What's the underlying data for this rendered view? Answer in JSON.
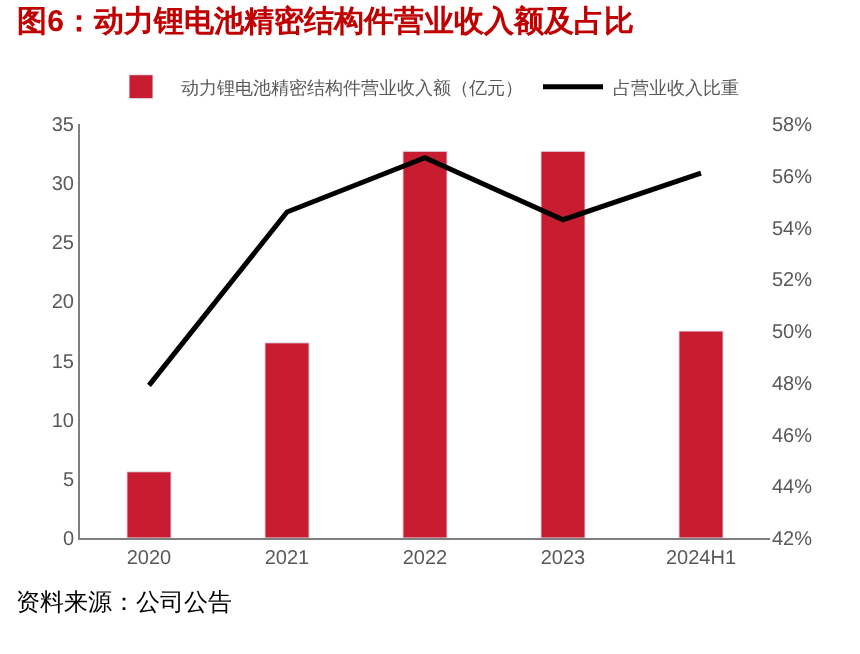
{
  "chart_data": {
    "type": "bar",
    "title": "图6：动力锂电池精密结构件营业收入额及占比",
    "categories": [
      "2020",
      "2021",
      "2022",
      "2023",
      "2024H1"
    ],
    "series": [
      {
        "name": "动力锂电池精密结构件营业收入额（亿元）",
        "color": "#c81d31",
        "values": [
          5.6,
          16.5,
          32.7,
          32.7,
          17.5
        ]
      },
      {
        "name": "占营业收入比重",
        "type": "line",
        "axis": "y2",
        "color": "#000000",
        "values": [
          47.9,
          54.6,
          56.7,
          54.3,
          56.1
        ]
      }
    ],
    "ylim": [
      0,
      35
    ],
    "yticks": [
      0,
      5,
      10,
      15,
      20,
      25,
      30,
      35
    ],
    "y2lim": [
      42,
      58
    ],
    "y2ticks": [
      {
        "value": 42,
        "label": "42%"
      },
      {
        "value": 44,
        "label": "44%"
      },
      {
        "value": 46,
        "label": "46%"
      },
      {
        "value": 48,
        "label": "48%"
      },
      {
        "value": 50,
        "label": "50%"
      },
      {
        "value": 52,
        "label": "52%"
      },
      {
        "value": 54,
        "label": "54%"
      },
      {
        "value": 56,
        "label": "56%"
      },
      {
        "value": 58,
        "label": "58%"
      }
    ],
    "legend": "top",
    "marker": "none",
    "line_style": "solid",
    "annotations": [
      "资料来源：公司公告"
    ]
  }
}
